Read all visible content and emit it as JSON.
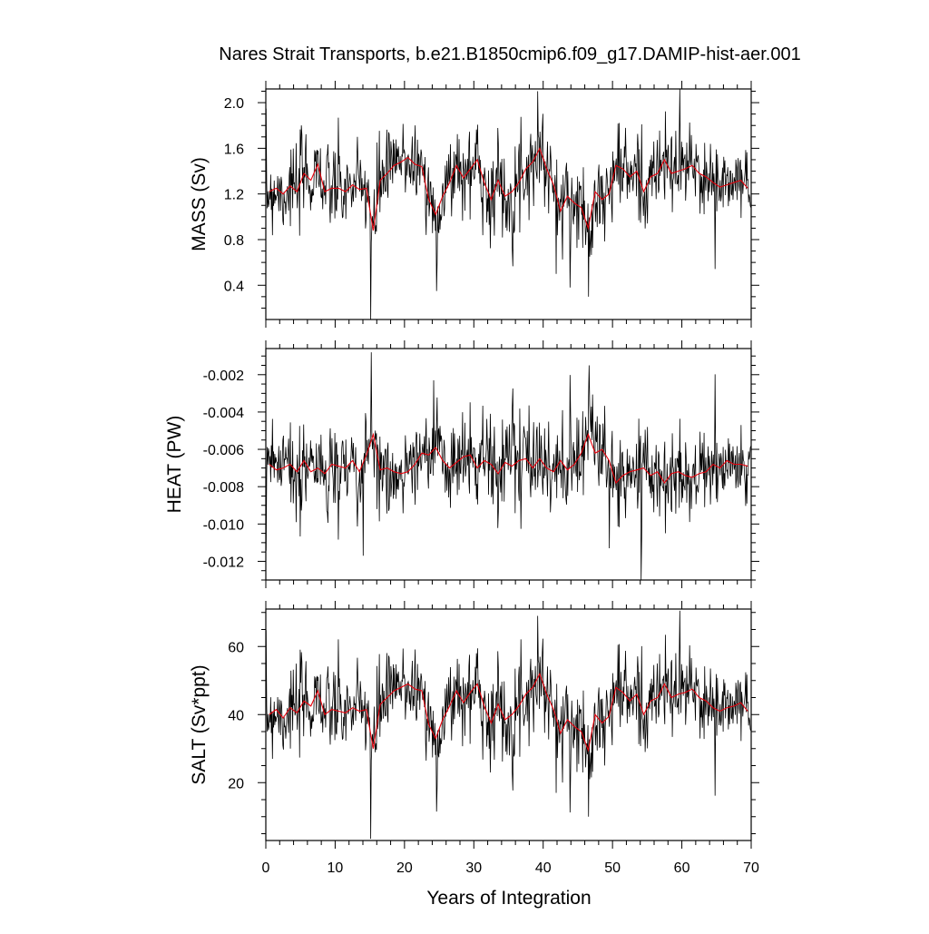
{
  "title": "Nares Strait Transports, b.e21.B1850cmip6.f09_g17.DAMIP-hist-aer.001",
  "xlabel": "Years of Integration",
  "x_ticks": [
    0,
    10,
    20,
    30,
    40,
    50,
    60,
    70
  ],
  "colors": {
    "monthly": "#000000",
    "annual": "#e8000b"
  },
  "chart_data": [
    {
      "type": "line",
      "ylabel": "MASS (Sv)",
      "xlim": [
        0,
        70
      ],
      "ylim": [
        0.1,
        2.12
      ],
      "y_ticks": [
        "2.0",
        "1.6",
        "1.2",
        "0.8",
        "0.4"
      ],
      "y_tick_values": [
        2.0,
        1.6,
        1.2,
        0.8,
        0.4
      ],
      "monthly_mean": 1.28,
      "monthly_std": 0.22,
      "extremes": [
        [
          15.1,
          0.1
        ],
        [
          39.2,
          2.1
        ],
        [
          59.7,
          2.12
        ],
        [
          46.5,
          0.3
        ],
        [
          24.6,
          0.35
        ],
        [
          41.9,
          0.5
        ]
      ],
      "series": [
        {
          "name": "",
          "x": [
            0.5,
            1.5,
            2.5,
            3.5,
            4.5,
            5.5,
            6.5,
            7.5,
            8.5,
            9.5,
            10.5,
            11.5,
            12.5,
            13.5,
            14.5,
            15.5,
            16.5,
            17.5,
            18.5,
            19.5,
            20.5,
            21.5,
            22.5,
            23.5,
            24.5,
            25.5,
            26.5,
            27.5,
            28.5,
            29.5,
            30.5,
            31.5,
            32.5,
            33.5,
            34.5,
            35.5,
            36.5,
            37.5,
            38.5,
            39.5,
            40.5,
            41.5,
            42.5,
            43.5,
            44.5,
            45.5,
            46.5,
            47.5,
            48.5,
            49.5,
            50.5,
            51.5,
            52.5,
            53.5,
            54.5,
            55.5,
            56.5,
            57.5,
            58.5,
            59.5,
            60.5,
            61.5,
            62.5,
            63.5,
            64.5,
            65.5,
            66.5,
            67.5,
            68.5,
            69.5
          ],
          "y": [
            1.22,
            1.25,
            1.2,
            1.27,
            1.22,
            1.38,
            1.32,
            1.46,
            1.22,
            1.25,
            1.25,
            1.22,
            1.28,
            1.24,
            1.25,
            0.88,
            1.32,
            1.38,
            1.45,
            1.48,
            1.52,
            1.46,
            1.44,
            1.15,
            1.02,
            1.18,
            1.3,
            1.45,
            1.34,
            1.42,
            1.5,
            1.3,
            1.15,
            1.32,
            1.18,
            1.22,
            1.3,
            1.42,
            1.48,
            1.6,
            1.42,
            1.28,
            1.05,
            1.18,
            1.12,
            1.08,
            0.9,
            1.22,
            1.15,
            1.2,
            1.45,
            1.42,
            1.35,
            1.4,
            1.22,
            1.35,
            1.38,
            1.5,
            1.38,
            1.4,
            1.42,
            1.45,
            1.38,
            1.35,
            1.3,
            1.26,
            1.28,
            1.3,
            1.32,
            1.25
          ]
        }
      ]
    },
    {
      "type": "line",
      "ylabel": "HEAT (PW)",
      "xlim": [
        0,
        70
      ],
      "ylim": [
        -0.013,
        -0.0006
      ],
      "y_ticks": [
        "-0.002",
        "-0.004",
        "-0.006",
        "-0.008",
        "-0.010",
        "-0.012"
      ],
      "y_tick_values": [
        -0.002,
        -0.004,
        -0.006,
        -0.008,
        -0.01,
        -0.012
      ],
      "monthly_mean": -0.0069,
      "monthly_std": 0.0014,
      "extremes": [
        [
          15.2,
          -0.0008
        ],
        [
          46.6,
          -0.0015
        ],
        [
          54.1,
          -0.013
        ],
        [
          14.0,
          -0.0117
        ],
        [
          49.5,
          -0.0113
        ],
        [
          24.2,
          -0.0023
        ]
      ],
      "series": [
        {
          "name": "",
          "x": [
            0.5,
            1.5,
            2.5,
            3.5,
            4.5,
            5.5,
            6.5,
            7.5,
            8.5,
            9.5,
            10.5,
            11.5,
            12.5,
            13.5,
            14.5,
            15.5,
            16.5,
            17.5,
            18.5,
            19.5,
            20.5,
            21.5,
            22.5,
            23.5,
            24.5,
            25.5,
            26.5,
            27.5,
            28.5,
            29.5,
            30.5,
            31.5,
            32.5,
            33.5,
            34.5,
            35.5,
            36.5,
            37.5,
            38.5,
            39.5,
            40.5,
            41.5,
            42.5,
            43.5,
            44.5,
            45.5,
            46.5,
            47.5,
            48.5,
            49.5,
            50.5,
            51.5,
            52.5,
            53.5,
            54.5,
            55.5,
            56.5,
            57.5,
            58.5,
            59.5,
            60.5,
            61.5,
            62.5,
            63.5,
            64.5,
            65.5,
            66.5,
            67.5,
            68.5,
            69.5
          ],
          "y": [
            -0.0068,
            -0.0071,
            -0.007,
            -0.0068,
            -0.0072,
            -0.0066,
            -0.0072,
            -0.007,
            -0.0073,
            -0.0068,
            -0.0069,
            -0.007,
            -0.0066,
            -0.0072,
            -0.0063,
            -0.0052,
            -0.0071,
            -0.007,
            -0.0072,
            -0.0073,
            -0.0072,
            -0.0068,
            -0.0062,
            -0.0063,
            -0.0059,
            -0.0066,
            -0.007,
            -0.0067,
            -0.0064,
            -0.0063,
            -0.007,
            -0.0066,
            -0.0068,
            -0.0073,
            -0.0067,
            -0.0069,
            -0.0066,
            -0.0065,
            -0.007,
            -0.0065,
            -0.007,
            -0.0072,
            -0.0066,
            -0.0071,
            -0.0068,
            -0.0062,
            -0.0052,
            -0.0062,
            -0.006,
            -0.0066,
            -0.0078,
            -0.0074,
            -0.0072,
            -0.0071,
            -0.007,
            -0.0074,
            -0.0072,
            -0.0078,
            -0.0073,
            -0.0072,
            -0.0074,
            -0.0075,
            -0.0073,
            -0.0072,
            -0.0068,
            -0.007,
            -0.0066,
            -0.0068,
            -0.0068,
            -0.0069
          ]
        }
      ]
    },
    {
      "type": "line",
      "ylabel": "SALT (Sv*ppt)",
      "xlim": [
        0,
        70
      ],
      "ylim": [
        3,
        71
      ],
      "y_ticks": [
        "60",
        "40",
        "20"
      ],
      "y_tick_values": [
        60,
        40,
        20
      ],
      "monthly_mean": 41.5,
      "monthly_std": 7.5,
      "extremes": [
        [
          15.1,
          3.5
        ],
        [
          39.2,
          69.0
        ],
        [
          59.7,
          70.5
        ],
        [
          46.5,
          10.0
        ],
        [
          24.6,
          11.5
        ],
        [
          41.9,
          17.0
        ]
      ],
      "series": [
        {
          "name": "",
          "x": [
            0.5,
            1.5,
            2.5,
            3.5,
            4.5,
            5.5,
            6.5,
            7.5,
            8.5,
            9.5,
            10.5,
            11.5,
            12.5,
            13.5,
            14.5,
            15.5,
            16.5,
            17.5,
            18.5,
            19.5,
            20.5,
            21.5,
            22.5,
            23.5,
            24.5,
            25.5,
            26.5,
            27.5,
            28.5,
            29.5,
            30.5,
            31.5,
            32.5,
            33.5,
            34.5,
            35.5,
            36.5,
            37.5,
            38.5,
            39.5,
            40.5,
            41.5,
            42.5,
            43.5,
            44.5,
            45.5,
            46.5,
            47.5,
            48.5,
            49.5,
            50.5,
            51.5,
            52.5,
            53.5,
            54.5,
            55.5,
            56.5,
            57.5,
            58.5,
            59.5,
            60.5,
            61.5,
            62.5,
            63.5,
            64.5,
            65.5,
            66.5,
            67.5,
            68.5,
            69.5
          ],
          "y": [
            40.0,
            41.5,
            39.0,
            42.0,
            40.5,
            44.0,
            42.5,
            47.0,
            40.0,
            41.5,
            41.0,
            40.5,
            42.0,
            41.0,
            41.5,
            30.0,
            43.0,
            45.0,
            47.0,
            48.0,
            49.0,
            47.5,
            47.0,
            37.0,
            33.0,
            38.5,
            42.5,
            47.0,
            43.5,
            46.5,
            49.0,
            42.5,
            37.5,
            43.0,
            38.5,
            40.0,
            42.5,
            46.0,
            48.0,
            52.0,
            46.0,
            41.5,
            34.5,
            38.5,
            36.5,
            35.0,
            29.5,
            40.0,
            37.5,
            39.5,
            48.0,
            46.5,
            44.0,
            46.0,
            40.0,
            44.0,
            45.0,
            49.0,
            45.0,
            46.0,
            46.5,
            47.5,
            45.0,
            44.0,
            42.0,
            41.0,
            42.0,
            42.5,
            43.5,
            41.0
          ]
        }
      ]
    }
  ]
}
